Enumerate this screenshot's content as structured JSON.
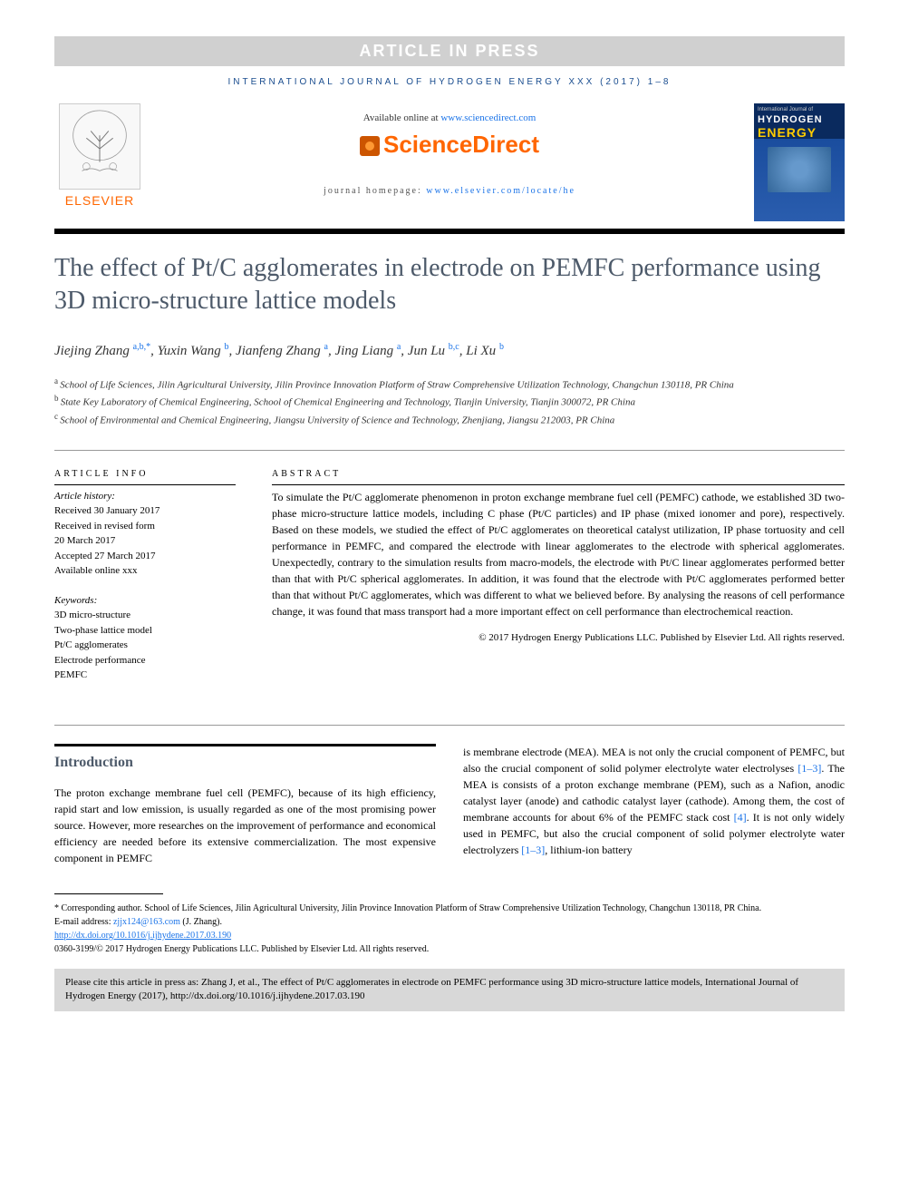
{
  "press_banner": "ARTICLE IN PRESS",
  "journal_header": "INTERNATIONAL JOURNAL OF HYDROGEN ENERGY XXX (2017) 1–8",
  "header": {
    "elsevier": "ELSEVIER",
    "available": "Available online at ",
    "available_url": "www.sciencedirect.com",
    "sciencedirect": "ScienceDirect",
    "homepage_label": "journal homepage: ",
    "homepage_url": "www.elsevier.com/locate/he"
  },
  "cover": {
    "small": "International Journal of",
    "hydrogen": "HYDROGEN",
    "energy": "ENERGY"
  },
  "title": "The effect of Pt/C agglomerates in electrode on PEMFC performance using 3D micro-structure lattice models",
  "authors": [
    {
      "name": "Jiejing Zhang",
      "sup": "a,b,*"
    },
    {
      "name": "Yuxin Wang",
      "sup": "b"
    },
    {
      "name": "Jianfeng Zhang",
      "sup": "a"
    },
    {
      "name": "Jing Liang",
      "sup": "a"
    },
    {
      "name": "Jun Lu",
      "sup": "b,c"
    },
    {
      "name": "Li Xu",
      "sup": "b"
    }
  ],
  "affiliations": [
    {
      "sup": "a",
      "text": "School of Life Sciences, Jilin Agricultural University, Jilin Province Innovation Platform of Straw Comprehensive Utilization Technology, Changchun 130118, PR China"
    },
    {
      "sup": "b",
      "text": "State Key Laboratory of Chemical Engineering, School of Chemical Engineering and Technology, Tianjin University, Tianjin 300072, PR China"
    },
    {
      "sup": "c",
      "text": "School of Environmental and Chemical Engineering, Jiangsu University of Science and Technology, Zhenjiang, Jiangsu 212003, PR China"
    }
  ],
  "article_info": {
    "heading": "ARTICLE INFO",
    "history_label": "Article history:",
    "history": [
      "Received 30 January 2017",
      "Received in revised form",
      "20 March 2017",
      "Accepted 27 March 2017",
      "Available online xxx"
    ],
    "keywords_label": "Keywords:",
    "keywords": [
      "3D micro-structure",
      "Two-phase lattice model",
      "Pt/C agglomerates",
      "Electrode performance",
      "PEMFC"
    ]
  },
  "abstract": {
    "heading": "ABSTRACT",
    "text": "To simulate the Pt/C agglomerate phenomenon in proton exchange membrane fuel cell (PEMFC) cathode, we established 3D two-phase micro-structure lattice models, including C phase (Pt/C particles) and IP phase (mixed ionomer and pore), respectively. Based on these models, we studied the effect of Pt/C agglomerates on theoretical catalyst utilization, IP phase tortuosity and cell performance in PEMFC, and compared the electrode with linear agglomerates to the electrode with spherical agglomerates. Unexpectedly, contrary to the simulation results from macro-models, the electrode with Pt/C linear agglomerates performed better than that with Pt/C spherical agglomerates. In addition, it was found that the electrode with Pt/C agglomerates performed better than that without Pt/C agglomerates, which was different to what we believed before. By analysing the reasons of cell performance change, it was found that mass transport had a more important effect on cell performance than electrochemical reaction.",
    "copyright": "© 2017 Hydrogen Energy Publications LLC. Published by Elsevier Ltd. All rights reserved."
  },
  "body": {
    "section_heading": "Introduction",
    "col1": "The proton exchange membrane fuel cell (PEMFC), because of its high efficiency, rapid start and low emission, is usually regarded as one of the most promising power source. However, more researches on the improvement of performance and economical efficiency are needed before its extensive commercialization. The most expensive component in PEMFC",
    "col2_p1": "is membrane electrode (MEA). MEA is not only the crucial component of PEMFC, but also the crucial component of solid polymer electrolyte water electrolyses ",
    "col2_ref1": "[1–3]",
    "col2_p2": ". The MEA is consists of a proton exchange membrane (PEM), such as a Nafion, anodic catalyst layer (anode) and cathodic catalyst layer (cathode). Among them, the cost of membrane accounts for about 6% of the PEMFC stack cost ",
    "col2_ref2": "[4]",
    "col2_p3": ". It is not only widely used in PEMFC, but also the crucial component of solid polymer electrolyte water electrolyzers ",
    "col2_ref3": "[1–3]",
    "col2_p4": ", lithium-ion battery"
  },
  "footer": {
    "corresponding": "* Corresponding author. School of Life Sciences, Jilin Agricultural University, Jilin Province Innovation Platform of Straw Comprehensive Utilization Technology, Changchun 130118, PR China.",
    "email_label": "E-mail address: ",
    "email": "zjjx124@163.com",
    "email_author": " (J. Zhang).",
    "doi": "http://dx.doi.org/10.1016/j.ijhydene.2017.03.190",
    "issn": "0360-3199/© 2017 Hydrogen Energy Publications LLC. Published by Elsevier Ltd. All rights reserved."
  },
  "cite": "Please cite this article in press as: Zhang J, et al., The effect of Pt/C agglomerates in electrode on PEMFC performance using 3D micro-structure lattice models, International Journal of Hydrogen Energy (2017), http://dx.doi.org/10.1016/j.ijhydene.2017.03.190"
}
